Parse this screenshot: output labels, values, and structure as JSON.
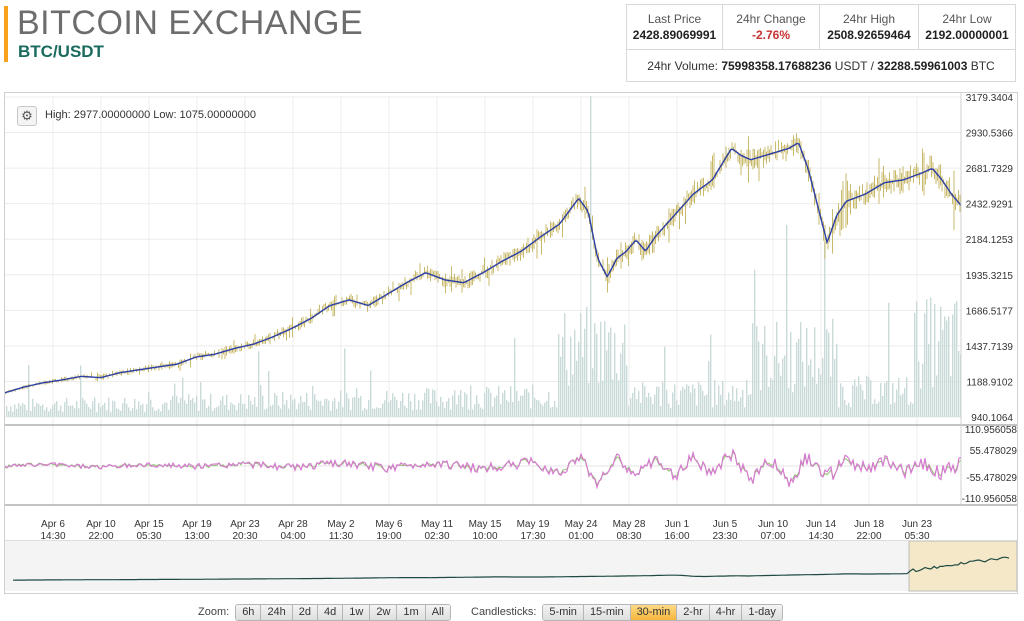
{
  "header": {
    "title": "BITCOIN EXCHANGE",
    "pair": "BTC/USDT"
  },
  "stats": {
    "last_price_label": "Last Price",
    "last_price": "2428.89069991",
    "change_label": "24hr Change",
    "change": "-2.76%",
    "high_label": "24hr High",
    "high": "2508.92659464",
    "low_label": "24hr Low",
    "low": "2192.00000001",
    "volume_label": "24hr Volume:",
    "volume_usdt": "75998358.17688236",
    "volume_usdt_unit": "USDT",
    "volume_sep": "/",
    "volume_btc": "32288.59961003",
    "volume_btc_unit": "BTC"
  },
  "chart_info": {
    "high_low": "High: 2977.00000000  Low: 1075.00000000",
    "settings_icon": "gear-icon"
  },
  "colors": {
    "ma_line": "#2b3fa6",
    "candle": "#c9b96a",
    "volume": "#c9dbd8",
    "osc_pink": "#d77bd1",
    "osc_green": "#8cc26b",
    "nav_line": "#1f4a44",
    "nav_window": "#f5e8c8",
    "active_button": "#f5b73c"
  },
  "chart_data": {
    "type": "line",
    "y_axis_ticks": [
      "3179.3404",
      "2930.5366",
      "2681.7329",
      "2432.9291",
      "2184.1253",
      "1935.3215",
      "1686.5177",
      "1437.7139",
      "1188.9102",
      "940.1064"
    ],
    "ylim": [
      940.1064,
      3179.3404
    ],
    "oscillator_ticks": [
      "110.956058",
      "55.478029",
      "-55.478029",
      "-110.956058"
    ],
    "oscillator_lim": [
      -110.956058,
      110.956058
    ],
    "x_tick_labels": [
      [
        "Apr 6",
        "14:30"
      ],
      [
        "Apr 10",
        "22:00"
      ],
      [
        "Apr 15",
        "05:30"
      ],
      [
        "Apr 19",
        "13:00"
      ],
      [
        "Apr 23",
        "20:30"
      ],
      [
        "Apr 28",
        "04:00"
      ],
      [
        "May 2",
        "11:30"
      ],
      [
        "May 6",
        "19:00"
      ],
      [
        "May 11",
        "02:30"
      ],
      [
        "May 15",
        "10:00"
      ],
      [
        "May 19",
        "17:30"
      ],
      [
        "May 24",
        "01:00"
      ],
      [
        "May 28",
        "08:30"
      ],
      [
        "Jun 1",
        "16:00"
      ],
      [
        "Jun 5",
        "23:30"
      ],
      [
        "Jun 10",
        "07:00"
      ],
      [
        "Jun 14",
        "14:30"
      ],
      [
        "Jun 18",
        "22:00"
      ],
      [
        "Jun 23",
        "05:30"
      ]
    ],
    "price_series": {
      "x": [
        0,
        0.02,
        0.04,
        0.06,
        0.08,
        0.1,
        0.12,
        0.14,
        0.16,
        0.18,
        0.2,
        0.22,
        0.24,
        0.26,
        0.28,
        0.3,
        0.32,
        0.34,
        0.36,
        0.38,
        0.4,
        0.42,
        0.44,
        0.46,
        0.48,
        0.5,
        0.52,
        0.54,
        0.56,
        0.58,
        0.6,
        0.61,
        0.62,
        0.63,
        0.64,
        0.65,
        0.66,
        0.67,
        0.68,
        0.7,
        0.72,
        0.74,
        0.76,
        0.77,
        0.78,
        0.8,
        0.82,
        0.83,
        0.84,
        0.85,
        0.86,
        0.87,
        0.88,
        0.9,
        0.92,
        0.94,
        0.96,
        0.97,
        0.98,
        0.99,
        1.0
      ],
      "y": [
        1110,
        1150,
        1180,
        1200,
        1225,
        1215,
        1250,
        1270,
        1290,
        1310,
        1360,
        1380,
        1420,
        1450,
        1500,
        1560,
        1630,
        1720,
        1760,
        1720,
        1800,
        1880,
        1950,
        1900,
        1880,
        1950,
        2030,
        2100,
        2200,
        2290,
        2470,
        2380,
        2050,
        1920,
        2050,
        2100,
        2180,
        2100,
        2200,
        2350,
        2500,
        2600,
        2820,
        2770,
        2740,
        2780,
        2820,
        2860,
        2680,
        2420,
        2160,
        2350,
        2450,
        2500,
        2580,
        2600,
        2650,
        2680,
        2600,
        2500,
        2420
      ]
    },
    "oscillator_series": {
      "x": [
        0,
        0.05,
        0.1,
        0.15,
        0.2,
        0.25,
        0.3,
        0.35,
        0.4,
        0.45,
        0.5,
        0.55,
        0.58,
        0.6,
        0.62,
        0.64,
        0.66,
        0.68,
        0.7,
        0.72,
        0.74,
        0.76,
        0.78,
        0.8,
        0.82,
        0.84,
        0.86,
        0.88,
        0.9,
        0.92,
        0.94,
        0.96,
        0.98,
        1.0
      ],
      "y": [
        0,
        5,
        -3,
        4,
        -2,
        6,
        -4,
        8,
        -6,
        10,
        -8,
        12,
        -20,
        30,
        -50,
        20,
        -25,
        15,
        -30,
        25,
        -20,
        35,
        -40,
        20,
        -45,
        30,
        -35,
        15,
        -10,
        12,
        -15,
        10,
        -20,
        5
      ]
    }
  },
  "controls": {
    "zoom_label": "Zoom:",
    "zoom_options": [
      "6h",
      "24h",
      "2d",
      "4d",
      "1w",
      "2w",
      "1m",
      "All"
    ],
    "candles_label": "Candlesticks:",
    "candle_options": [
      "5-min",
      "15-min",
      "30-min",
      "2-hr",
      "4-hr",
      "1-day"
    ],
    "candle_active": "30-min"
  }
}
